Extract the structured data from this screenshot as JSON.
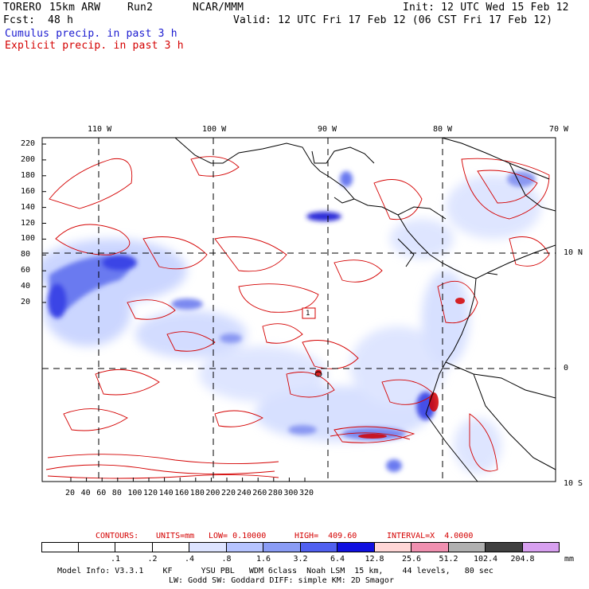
{
  "header": {
    "model": "TORERO",
    "resolution": "15km ARW",
    "run": "Run2",
    "org": "NCAR/MMM",
    "init": "Init: 12 UTC Wed 15 Feb 12",
    "fcst_label": "Fcst:",
    "fcst_value": "48 h",
    "valid": "Valid: 12 UTC Fri 17 Feb 12 (06 CST Fri 17 Feb 12)",
    "cumulus": "Cumulus precip. in past 3 h",
    "explicit": "Explicit precip. in past 3 h"
  },
  "map": {
    "lon_labels": [
      "110 W",
      "100 W",
      "90 W",
      "80 W",
      "70 W"
    ],
    "lat_labels": [
      "10 N",
      "0",
      "10 S"
    ],
    "y_ticks": [
      "220",
      "200",
      "180",
      "160",
      "140",
      "120",
      "100",
      "80",
      "60",
      "40",
      "20"
    ],
    "x_ticks": [
      "20",
      "40",
      "60",
      "80",
      "100",
      "120",
      "140",
      "160",
      "180",
      "200",
      "220",
      "240",
      "260",
      "280",
      "300",
      "320"
    ],
    "box_label": "1",
    "colors": {
      "land_outline": "#000000",
      "explicit_contour": "#d40000",
      "cumulus_shading": "#2a2ae0"
    }
  },
  "contours": {
    "label": "CONTOURS:",
    "units": "UNITS=mm",
    "low": "LOW= 0.10000",
    "high": "HIGH=  409.60",
    "interval": "INTERVAL=X  4.0000"
  },
  "colorbar": {
    "labels": [
      ".1",
      ".2",
      ".4",
      ".8",
      "1.6",
      "3.2",
      "6.4",
      "12.8",
      "25.6",
      "51.2",
      "102.4",
      "204.8"
    ],
    "unit": "mm",
    "colors": [
      "#ffffff",
      "#ffffff",
      "#ffffff",
      "#ffffff",
      "#dde4ff",
      "#b6c4ff",
      "#8a9cf5",
      "#5060f0",
      "#1010e0",
      "#ffd6d6",
      "#f090b0",
      "#b0b0b0",
      "#404040",
      "#d8a0f0"
    ]
  },
  "footer": {
    "line1": "Model Info: V3.3.1    KF      YSU PBL   WDM 6class  Noah LSM  15 km,    44 levels,   80 sec",
    "line2": "LW: Godd SW: Goddard DIFF: simple KM: 2D Smagor"
  }
}
